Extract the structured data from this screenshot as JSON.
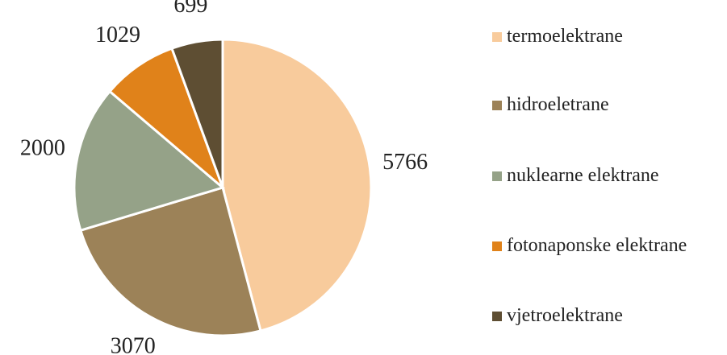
{
  "chart_data": {
    "type": "pie",
    "categories": [
      "termoelektrane",
      "hidroeletrane",
      "nuklearne elektrane",
      "fotonaponske elektrane",
      "vjetroelektrane"
    ],
    "values": [
      5766,
      3070,
      2000,
      1029,
      699
    ],
    "colors": [
      "#F8CB9C",
      "#9C8258",
      "#95A288",
      "#E0821A",
      "#5E4E33"
    ],
    "legend": "right"
  }
}
